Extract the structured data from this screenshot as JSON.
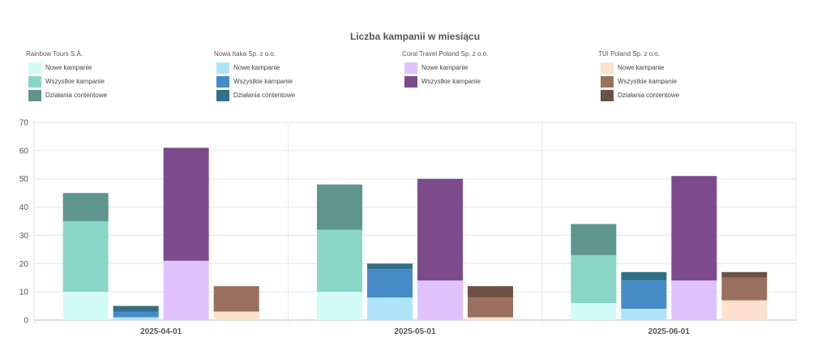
{
  "chart_data": {
    "type": "bar",
    "title": "Liczba kampanii w miesiącu",
    "categories": [
      "2025-04-01",
      "2025-05-01",
      "2025-06-01"
    ],
    "ylim": [
      0,
      70
    ],
    "yticks": [
      0,
      10,
      20,
      30,
      40,
      50,
      60,
      70
    ],
    "grid": true,
    "legend_position": "top",
    "stacked": true,
    "companies": [
      {
        "name": "Rainbow Tours S.A.",
        "series": [
          {
            "name": "Nowe kampanie",
            "color": "#d2fbf7",
            "values": [
              10,
              10,
              6
            ]
          },
          {
            "name": "Wszystkie kampanie",
            "color": "#89d6c6",
            "values": [
              25,
              22,
              17
            ]
          },
          {
            "name": "Działania contentowe",
            "color": "#5e958f",
            "values": [
              10,
              16,
              11
            ]
          }
        ]
      },
      {
        "name": "Nowa Itaka Sp. z o.o.",
        "series": [
          {
            "name": "Nowe kampanie",
            "color": "#aee4fa",
            "values": [
              1,
              8,
              4
            ]
          },
          {
            "name": "Wszystkie kampanie",
            "color": "#448bc7",
            "values": [
              2,
              10,
              10
            ]
          },
          {
            "name": "Działania contentowe",
            "color": "#327088",
            "values": [
              2,
              2,
              3
            ]
          }
        ]
      },
      {
        "name": "Coral Travel Poland Sp. z o.o.",
        "series": [
          {
            "name": "Nowe kampanie",
            "color": "#dfc2fb",
            "values": [
              21,
              14,
              14
            ]
          },
          {
            "name": "Wszystkie kampanie",
            "color": "#7d4b8b",
            "values": [
              40,
              36,
              37
            ]
          }
        ]
      },
      {
        "name": "TUI Poland Sp. z o.o.",
        "series": [
          {
            "name": "Nowe kampanie",
            "color": "#fde0cd",
            "values": [
              3,
              1,
              7
            ]
          },
          {
            "name": "Wszystkie kampanie",
            "color": "#9b6f5e",
            "values": [
              9,
              7,
              8
            ]
          },
          {
            "name": "Działania contentowe",
            "color": "#6c5045",
            "values": [
              0,
              4,
              2
            ]
          }
        ]
      }
    ]
  }
}
